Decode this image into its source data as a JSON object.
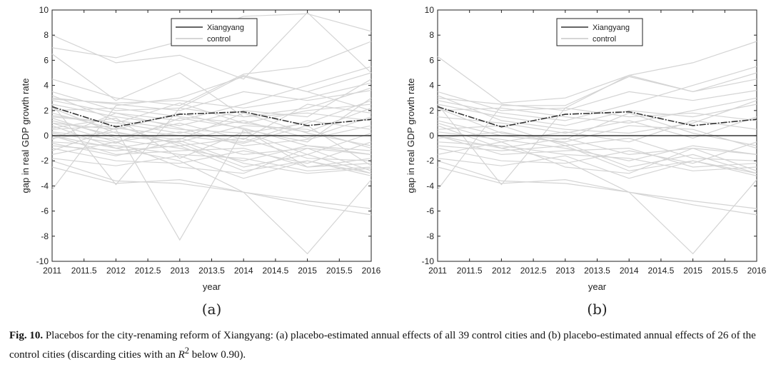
{
  "chart_data": [
    {
      "type": "line",
      "panel_label": "(a)",
      "xlabel": "year",
      "ylabel": "gap in real GDP growth rate",
      "xlim": [
        2011,
        2016
      ],
      "ylim": [
        -10,
        10
      ],
      "x_ticks": [
        "2011",
        "2011.5",
        "2012",
        "2012.5",
        "2013",
        "2013.5",
        "2014",
        "2014.5",
        "2015",
        "2015.5",
        "2016"
      ],
      "y_ticks": [
        "10",
        "8",
        "6",
        "4",
        "2",
        "0",
        "-2",
        "-4",
        "-6",
        "-8",
        "-10"
      ],
      "legend": [
        "Xiangyang",
        "control"
      ],
      "x": [
        2011,
        2012,
        2013,
        2014,
        2015,
        2016
      ],
      "treated": {
        "name": "Xiangyang",
        "values": [
          2.3,
          0.7,
          1.7,
          1.9,
          0.8,
          1.3
        ]
      },
      "zero_line": 0,
      "controls": [
        [
          7.0,
          6.2,
          7.5,
          9.5,
          9.7,
          8.3
        ],
        [
          8.0,
          5.8,
          6.4,
          4.5,
          9.8,
          5.0
        ],
        [
          6.5,
          2.8,
          5.0,
          1.5,
          2.2,
          3.8
        ],
        [
          -4.3,
          2.4,
          3.0,
          4.7,
          3.5,
          5.0
        ],
        [
          4.5,
          3.0,
          2.4,
          4.9,
          5.5,
          7.5
        ],
        [
          3.5,
          2.0,
          2.2,
          4.8,
          3.5,
          2.0
        ],
        [
          3.0,
          2.5,
          2.0,
          3.5,
          2.8,
          3.6
        ],
        [
          2.8,
          1.8,
          1.2,
          2.5,
          4.0,
          5.5
        ],
        [
          2.5,
          1.5,
          0.8,
          2.0,
          1.5,
          4.5
        ],
        [
          2.0,
          2.2,
          1.5,
          1.0,
          2.0,
          2.5
        ],
        [
          1.8,
          0.5,
          1.8,
          0.5,
          -0.5,
          3.0
        ],
        [
          1.5,
          1.0,
          0.2,
          1.2,
          -0.2,
          1.5
        ],
        [
          1.2,
          0.0,
          -0.5,
          0.8,
          0.5,
          -1.0
        ],
        [
          1.0,
          -0.5,
          0.3,
          -0.5,
          1.2,
          0.5
        ],
        [
          0.8,
          -1.0,
          -0.2,
          -1.5,
          -1.0,
          -1.5
        ],
        [
          0.5,
          0.8,
          -0.8,
          -0.2,
          -1.8,
          -2.0
        ],
        [
          0.3,
          -0.3,
          -1.0,
          -2.0,
          -0.8,
          -1.5
        ],
        [
          0.0,
          -1.5,
          -1.2,
          -1.0,
          -2.5,
          -2.2
        ],
        [
          -0.2,
          0.3,
          -0.6,
          -2.5,
          -1.5,
          -3.0
        ],
        [
          -0.5,
          -0.8,
          -1.5,
          -1.8,
          -2.8,
          -2.5
        ],
        [
          -0.8,
          -1.2,
          -0.8,
          -2.8,
          -2.0,
          -3.2
        ],
        [
          -1.0,
          -2.0,
          -2.2,
          -1.2,
          -2.2,
          -0.5
        ],
        [
          -1.5,
          -0.5,
          -2.5,
          -3.0,
          -1.0,
          -2.8
        ],
        [
          -2.0,
          -3.6,
          -3.8,
          -4.5,
          -5.2,
          -5.8
        ],
        [
          -2.5,
          -3.8,
          -3.5,
          -4.5,
          -5.5,
          -6.3
        ],
        [
          2.5,
          -3.9,
          2.2,
          1.5,
          1.8,
          1.2
        ],
        [
          1.0,
          0.5,
          -8.3,
          0.5,
          -2.5,
          -1.8
        ],
        [
          0.0,
          -1.0,
          -2.0,
          -4.5,
          -9.4,
          -3.5
        ],
        [
          3.2,
          1.2,
          0.5,
          0.2,
          1.0,
          2.8
        ],
        [
          -0.3,
          1.8,
          0.6,
          -0.8,
          -0.3,
          0.8
        ],
        [
          2.2,
          0.2,
          -0.3,
          1.8,
          0.2,
          -0.8
        ],
        [
          1.4,
          -0.2,
          1.0,
          -0.3,
          2.5,
          1.8
        ],
        [
          0.6,
          1.4,
          -1.8,
          0.3,
          -1.5,
          0.2
        ],
        [
          -1.2,
          0.6,
          0.0,
          -0.6,
          0.8,
          -2.4
        ],
        [
          2.9,
          2.6,
          2.8,
          2.2,
          3.0,
          4.2
        ],
        [
          -0.6,
          -1.6,
          -0.4,
          -2.2,
          -3.0,
          -2.6
        ],
        [
          1.6,
          1.0,
          2.6,
          1.0,
          0.3,
          2.2
        ],
        [
          0.2,
          -0.6,
          1.4,
          0.6,
          -0.8,
          -1.2
        ],
        [
          -1.8,
          -2.4,
          -1.6,
          -3.4,
          -2.0,
          -3.0
        ]
      ]
    },
    {
      "type": "line",
      "panel_label": "(b)",
      "xlabel": "year",
      "ylabel": "gap in real GDP growth rate",
      "xlim": [
        2011,
        2016
      ],
      "ylim": [
        -10,
        10
      ],
      "x_ticks": [
        "2011",
        "2011.5",
        "2012",
        "2012.5",
        "2013",
        "2013.5",
        "2014",
        "2014.5",
        "2015",
        "2015.5",
        "2016"
      ],
      "y_ticks": [
        "10",
        "8",
        "6",
        "4",
        "2",
        "0",
        "-2",
        "-4",
        "-6",
        "-8",
        "-10"
      ],
      "legend": [
        "Xiangyang",
        "control"
      ],
      "x": [
        2011,
        2012,
        2013,
        2014,
        2015,
        2016
      ],
      "treated": {
        "name": "Xiangyang",
        "values": [
          2.3,
          0.7,
          1.7,
          1.9,
          0.8,
          1.3
        ]
      },
      "zero_line": 0,
      "controls": [
        [
          6.3,
          2.6,
          3.0,
          4.8,
          5.8,
          7.5
        ],
        [
          -4.3,
          2.4,
          2.4,
          4.7,
          3.5,
          5.0
        ],
        [
          3.5,
          2.0,
          2.2,
          4.8,
          3.5,
          4.5
        ],
        [
          3.0,
          2.5,
          2.0,
          3.5,
          2.8,
          3.6
        ],
        [
          2.8,
          1.8,
          1.2,
          2.5,
          4.0,
          5.5
        ],
        [
          2.5,
          1.5,
          0.8,
          2.0,
          1.5,
          2.5
        ],
        [
          2.0,
          2.2,
          1.5,
          1.0,
          2.0,
          3.0
        ],
        [
          1.5,
          1.0,
          0.2,
          1.2,
          -0.2,
          1.5
        ],
        [
          1.2,
          0.0,
          -0.5,
          0.8,
          0.5,
          -1.0
        ],
        [
          1.0,
          -0.5,
          0.3,
          -0.5,
          1.2,
          0.5
        ],
        [
          0.8,
          -1.0,
          -0.2,
          -1.5,
          -1.0,
          -1.5
        ],
        [
          0.5,
          0.8,
          -0.8,
          -0.2,
          -1.8,
          -2.0
        ],
        [
          0.3,
          -0.3,
          -1.0,
          -2.0,
          -0.8,
          -1.5
        ],
        [
          0.0,
          -1.5,
          -1.2,
          -1.0,
          -2.5,
          -2.2
        ],
        [
          -0.2,
          0.3,
          -0.6,
          -2.5,
          -1.5,
          -3.0
        ],
        [
          -0.5,
          -0.8,
          -1.5,
          -1.8,
          -2.8,
          -2.5
        ],
        [
          -0.8,
          -1.2,
          -0.8,
          -2.8,
          -2.0,
          -3.2
        ],
        [
          -1.0,
          -2.0,
          -2.2,
          -1.2,
          -2.2,
          -0.5
        ],
        [
          -1.5,
          -0.5,
          -2.5,
          -3.0,
          -1.0,
          -2.8
        ],
        [
          -2.0,
          -3.6,
          -3.8,
          -4.5,
          -5.2,
          -5.8
        ],
        [
          -2.5,
          -3.8,
          -3.5,
          -4.5,
          -5.5,
          -6.3
        ],
        [
          2.5,
          -3.9,
          2.2,
          1.5,
          1.8,
          1.2
        ],
        [
          0.0,
          -1.0,
          -2.0,
          -4.5,
          -9.4,
          -3.5
        ],
        [
          3.2,
          1.2,
          0.5,
          0.2,
          1.0,
          2.8
        ],
        [
          2.2,
          0.2,
          -0.3,
          1.8,
          0.2,
          -0.8
        ],
        [
          -1.8,
          -2.4,
          -1.6,
          -3.4,
          -2.0,
          -3.0
        ]
      ]
    }
  ],
  "caption": {
    "fig_label": "Fig. 10.",
    "text_before": " Placebos for the city-renaming reform of Xiangyang: (a) placebo-estimated annual effects of all 39 control cities and (b) placebo-estimated annual effects of 26 of the control cities (discarding cities with an ",
    "r_symbol": "R",
    "r_exp": "2",
    "text_after": " below 0.90)."
  },
  "colors": {
    "treated": "#333333",
    "control": "#d4d4d4",
    "axis": "#222222"
  }
}
